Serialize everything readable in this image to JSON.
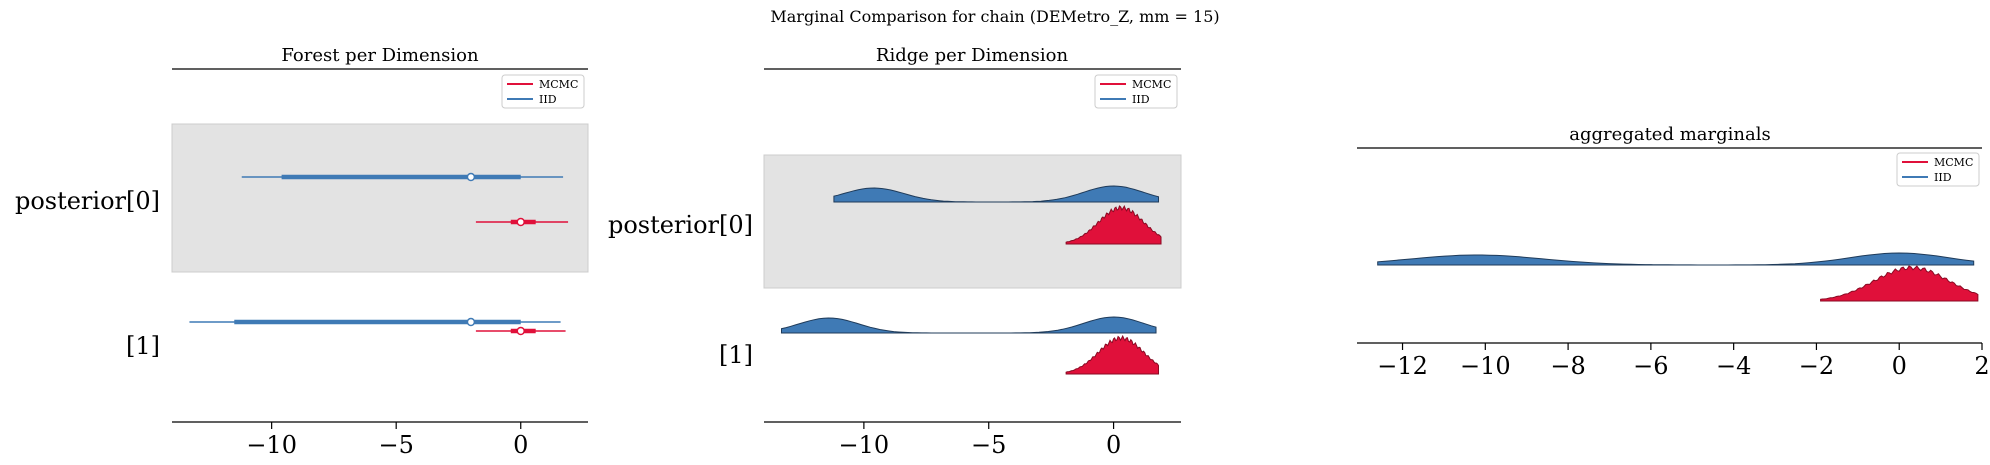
{
  "suptitle": "Marginal Comparison for chain (DEMetro_Z, mm = 15)",
  "colors": {
    "mcmc": "#e0103a",
    "iid": "#3f7ab5",
    "band": "#e3e3e3",
    "mcmc_outline": "#8a0a23",
    "iid_outline": "#1f3b5a"
  },
  "legend": [
    "MCMC",
    "IID"
  ],
  "chart_data": [
    {
      "type": "forest",
      "title": "Forest per Dimension",
      "xlim": [
        -14,
        2.7
      ],
      "xticks": [
        -10,
        -5,
        0
      ],
      "tick_labels": [
        "−10",
        "−5",
        "0"
      ],
      "row_labels": [
        "posterior[0]",
        "[1]"
      ],
      "shaded_row": 0,
      "legend_position": "top-right",
      "series": [
        {
          "name": "IID",
          "row": 0,
          "hdi": [
            -11.2,
            1.7
          ],
          "iqr": [
            -9.6,
            0.0
          ],
          "median": -2.0
        },
        {
          "name": "MCMC",
          "row": 0,
          "hdi": [
            -1.8,
            1.9
          ],
          "iqr": [
            -0.4,
            0.6
          ],
          "median": 0.0
        },
        {
          "name": "IID",
          "row": 1,
          "hdi": [
            -13.3,
            1.6
          ],
          "iqr": [
            -11.5,
            0.0
          ],
          "median": -2.0
        },
        {
          "name": "MCMC",
          "row": 1,
          "hdi": [
            -1.8,
            1.8
          ],
          "iqr": [
            -0.4,
            0.6
          ],
          "median": 0.0
        }
      ]
    },
    {
      "type": "ridge",
      "title": "Ridge per Dimension",
      "xlim": [
        -14,
        2.7
      ],
      "xticks": [
        -10,
        -5,
        0
      ],
      "tick_labels": [
        "−10",
        "−5",
        "0"
      ],
      "row_labels": [
        "posterior[0]",
        "[1]"
      ],
      "shaded_row": 0,
      "legend_position": "top-right",
      "series": [
        {
          "name": "IID",
          "row": 0,
          "range": [
            -11.2,
            1.8
          ],
          "peaks": [
            [
              -9.6,
              0.7,
              1.2
            ],
            [
              0.0,
              0.8,
              1.2
            ]
          ]
        },
        {
          "name": "MCMC",
          "row": 0,
          "range": [
            -1.9,
            1.9
          ],
          "peaks": [
            [
              0.3,
              1.0,
              0.9
            ]
          ]
        },
        {
          "name": "IID",
          "row": 1,
          "range": [
            -13.3,
            1.7
          ],
          "peaks": [
            [
              -11.4,
              0.75,
              1.2
            ],
            [
              0.0,
              0.8,
              1.2
            ]
          ]
        },
        {
          "name": "MCMC",
          "row": 1,
          "range": [
            -1.9,
            1.8
          ],
          "peaks": [
            [
              0.3,
              1.0,
              0.9
            ]
          ]
        }
      ]
    },
    {
      "type": "ridge",
      "title": "aggregated marginals",
      "xlim": [
        -13.1,
        2.0
      ],
      "xticks": [
        -12,
        -10,
        -8,
        -6,
        -4,
        -2,
        0,
        2
      ],
      "tick_labels": [
        "−12",
        "−10",
        "−8",
        "−6",
        "−4",
        "−2",
        "0",
        "2"
      ],
      "legend_position": "top-right",
      "series": [
        {
          "name": "IID",
          "range": [
            -12.6,
            1.8
          ],
          "peaks": [
            [
              -10.2,
              0.3,
              1.6
            ],
            [
              0.0,
              0.36,
              1.2
            ]
          ]
        },
        {
          "name": "MCMC",
          "range": [
            -1.9,
            1.9
          ],
          "peaks": [
            [
              0.3,
              1.0,
              0.9
            ]
          ]
        }
      ]
    }
  ]
}
